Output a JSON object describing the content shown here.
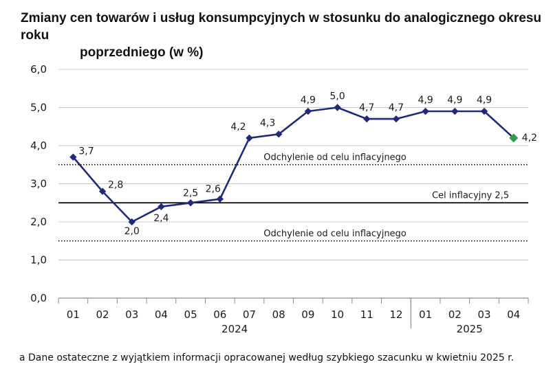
{
  "title_line1": "Zmiany cen towarów i usług konsumpcyjnych w stosunku do analogicznego okresu roku",
  "title_line2": "poprzedniego (w %)",
  "footnote": "a Dane ostateczne z wyjątkiem informacji opracowanej według szybkiego szacunku w kwietniu 2025 r.",
  "colors": {
    "line": "#1f2a7a",
    "last_marker": "#2e9a4a",
    "grid": "#c8c8c8",
    "target": "#000000"
  },
  "chart_data": {
    "type": "line",
    "title": "Zmiany cen towarów i usług konsumpcyjnych w stosunku do analogicznego okresu roku poprzedniego (w %)",
    "categories": [
      "01",
      "02",
      "03",
      "04",
      "05",
      "06",
      "07",
      "08",
      "09",
      "10",
      "11",
      "12",
      "01",
      "02",
      "03",
      "04"
    ],
    "year_labels": [
      {
        "label": "2024",
        "from_index": 0,
        "to_index": 11
      },
      {
        "label": "2025",
        "from_index": 12,
        "to_index": 15
      }
    ],
    "series": [
      {
        "values": [
          3.7,
          2.8,
          2.0,
          2.4,
          2.5,
          2.6,
          4.2,
          4.3,
          4.9,
          5.0,
          4.7,
          4.7,
          4.9,
          4.9,
          4.9,
          4.2
        ],
        "labels": [
          "3,7",
          "2,8",
          "2,0",
          "2,4",
          "2,5",
          "2,6",
          "4,2",
          "4,3",
          "4,9",
          "5,0",
          "4,7",
          "4,7",
          "4,9",
          "4,9",
          "4,9",
          "4,2"
        ]
      }
    ],
    "ylim": [
      0,
      6
    ],
    "yticks": [
      0,
      1,
      2,
      3,
      4,
      5,
      6
    ],
    "ytick_labels": [
      "0,0",
      "1,0",
      "2,0",
      "3,0",
      "4,0",
      "5,0",
      "6,0"
    ],
    "grid": true,
    "reference_lines": [
      {
        "value": 3.5,
        "style": "dotted",
        "label": "Odchylenie od celu inflacyjnego"
      },
      {
        "value": 2.5,
        "style": "solid",
        "label": "Cel inflacyjny 2,5"
      },
      {
        "value": 1.5,
        "style": "dotted",
        "label": "Odchylenie od celu inflacyjnego"
      }
    ],
    "year_separator_after_index": 11
  }
}
